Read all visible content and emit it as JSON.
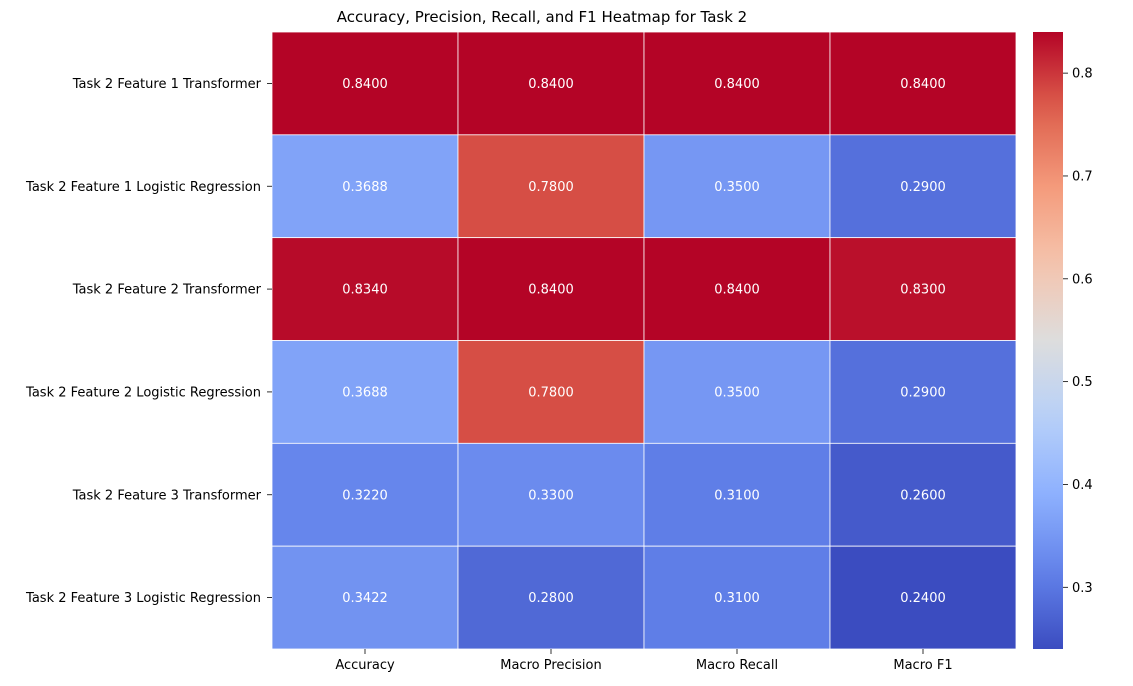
{
  "chart_data": {
    "type": "heatmap",
    "title": "Accuracy, Precision, Recall, and F1 Heatmap for Task 2",
    "columns": [
      "Accuracy",
      "Macro Precision",
      "Macro Recall",
      "Macro F1"
    ],
    "rows": [
      "Task 2 Feature 1 Transformer",
      "Task 2 Feature 1 Logistic Regression",
      "Task 2 Feature 2 Transformer",
      "Task 2 Feature 2 Logistic Regression",
      "Task 2 Feature 3 Transformer",
      "Task 2 Feature 3 Logistic Regression"
    ],
    "values": [
      [
        0.84,
        0.84,
        0.84,
        0.84
      ],
      [
        0.3688,
        0.78,
        0.35,
        0.29
      ],
      [
        0.834,
        0.84,
        0.84,
        0.83
      ],
      [
        0.3688,
        0.78,
        0.35,
        0.29
      ],
      [
        0.322,
        0.33,
        0.31,
        0.26
      ],
      [
        0.3422,
        0.28,
        0.31,
        0.24
      ]
    ],
    "value_format_decimals": 4,
    "colormap": "coolwarm",
    "vmin": 0.24,
    "vmax": 0.84,
    "colorbar": {
      "ticks": [
        0.3,
        0.4,
        0.5,
        0.6,
        0.7,
        0.8
      ],
      "tick_labels": [
        "0.3",
        "0.4",
        "0.5",
        "0.6",
        "0.7",
        "0.8"
      ]
    },
    "xlabel": "",
    "ylabel": "",
    "grid_lines_color": "#ffffff"
  }
}
